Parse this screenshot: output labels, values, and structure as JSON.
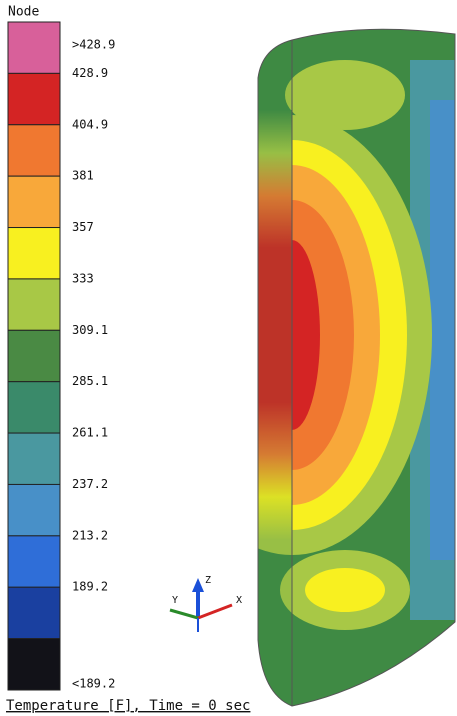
{
  "legend": {
    "title": "Node",
    "items": [
      {
        "label": ">428.9",
        "color": "#d8609a"
      },
      {
        "label": "428.9",
        "color": "#d42424"
      },
      {
        "label": "404.9",
        "color": "#f07830"
      },
      {
        "label": "381",
        "color": "#f8a83a"
      },
      {
        "label": "357",
        "color": "#f8f020"
      },
      {
        "label": "333",
        "color": "#a8c846"
      },
      {
        "label": "309.1",
        "color": "#4a8a44"
      },
      {
        "label": "285.1",
        "color": "#3a8a6a"
      },
      {
        "label": "261.1",
        "color": "#4a98a0"
      },
      {
        "label": "237.2",
        "color": "#4890c8"
      },
      {
        "label": "213.2",
        "color": "#2f6ed8"
      },
      {
        "label": "189.2",
        "color": "#1a40a0"
      },
      {
        "label": "<189.2",
        "color": "#121218"
      }
    ]
  },
  "triad": {
    "z": "Z",
    "y": "Y",
    "x": "X"
  },
  "footer": "Temperature [F], Time = 0 sec"
}
